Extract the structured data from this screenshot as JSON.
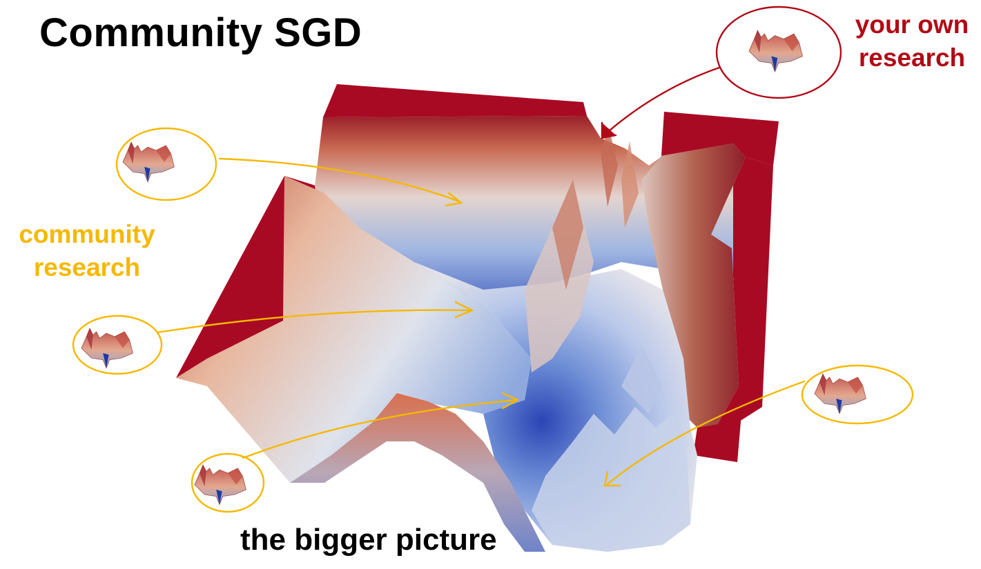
{
  "slide": {
    "title": "Community SGD",
    "caption": "the bigger picture"
  },
  "labels": {
    "community": [
      "community",
      "research"
    ],
    "own": [
      "your own",
      "research"
    ]
  },
  "colors": {
    "community_accent": "#f5b800",
    "own_accent": "#b00a16",
    "terrain_top": "#a80a24",
    "terrain_high": "#d2694f",
    "terrain_mid": "#e6dcd8",
    "terrain_low": "#8eaee0",
    "terrain_basin": "#2a46b8"
  },
  "icons": {
    "landscape_thumbnail": "loss-landscape-thumbnail-icon"
  }
}
